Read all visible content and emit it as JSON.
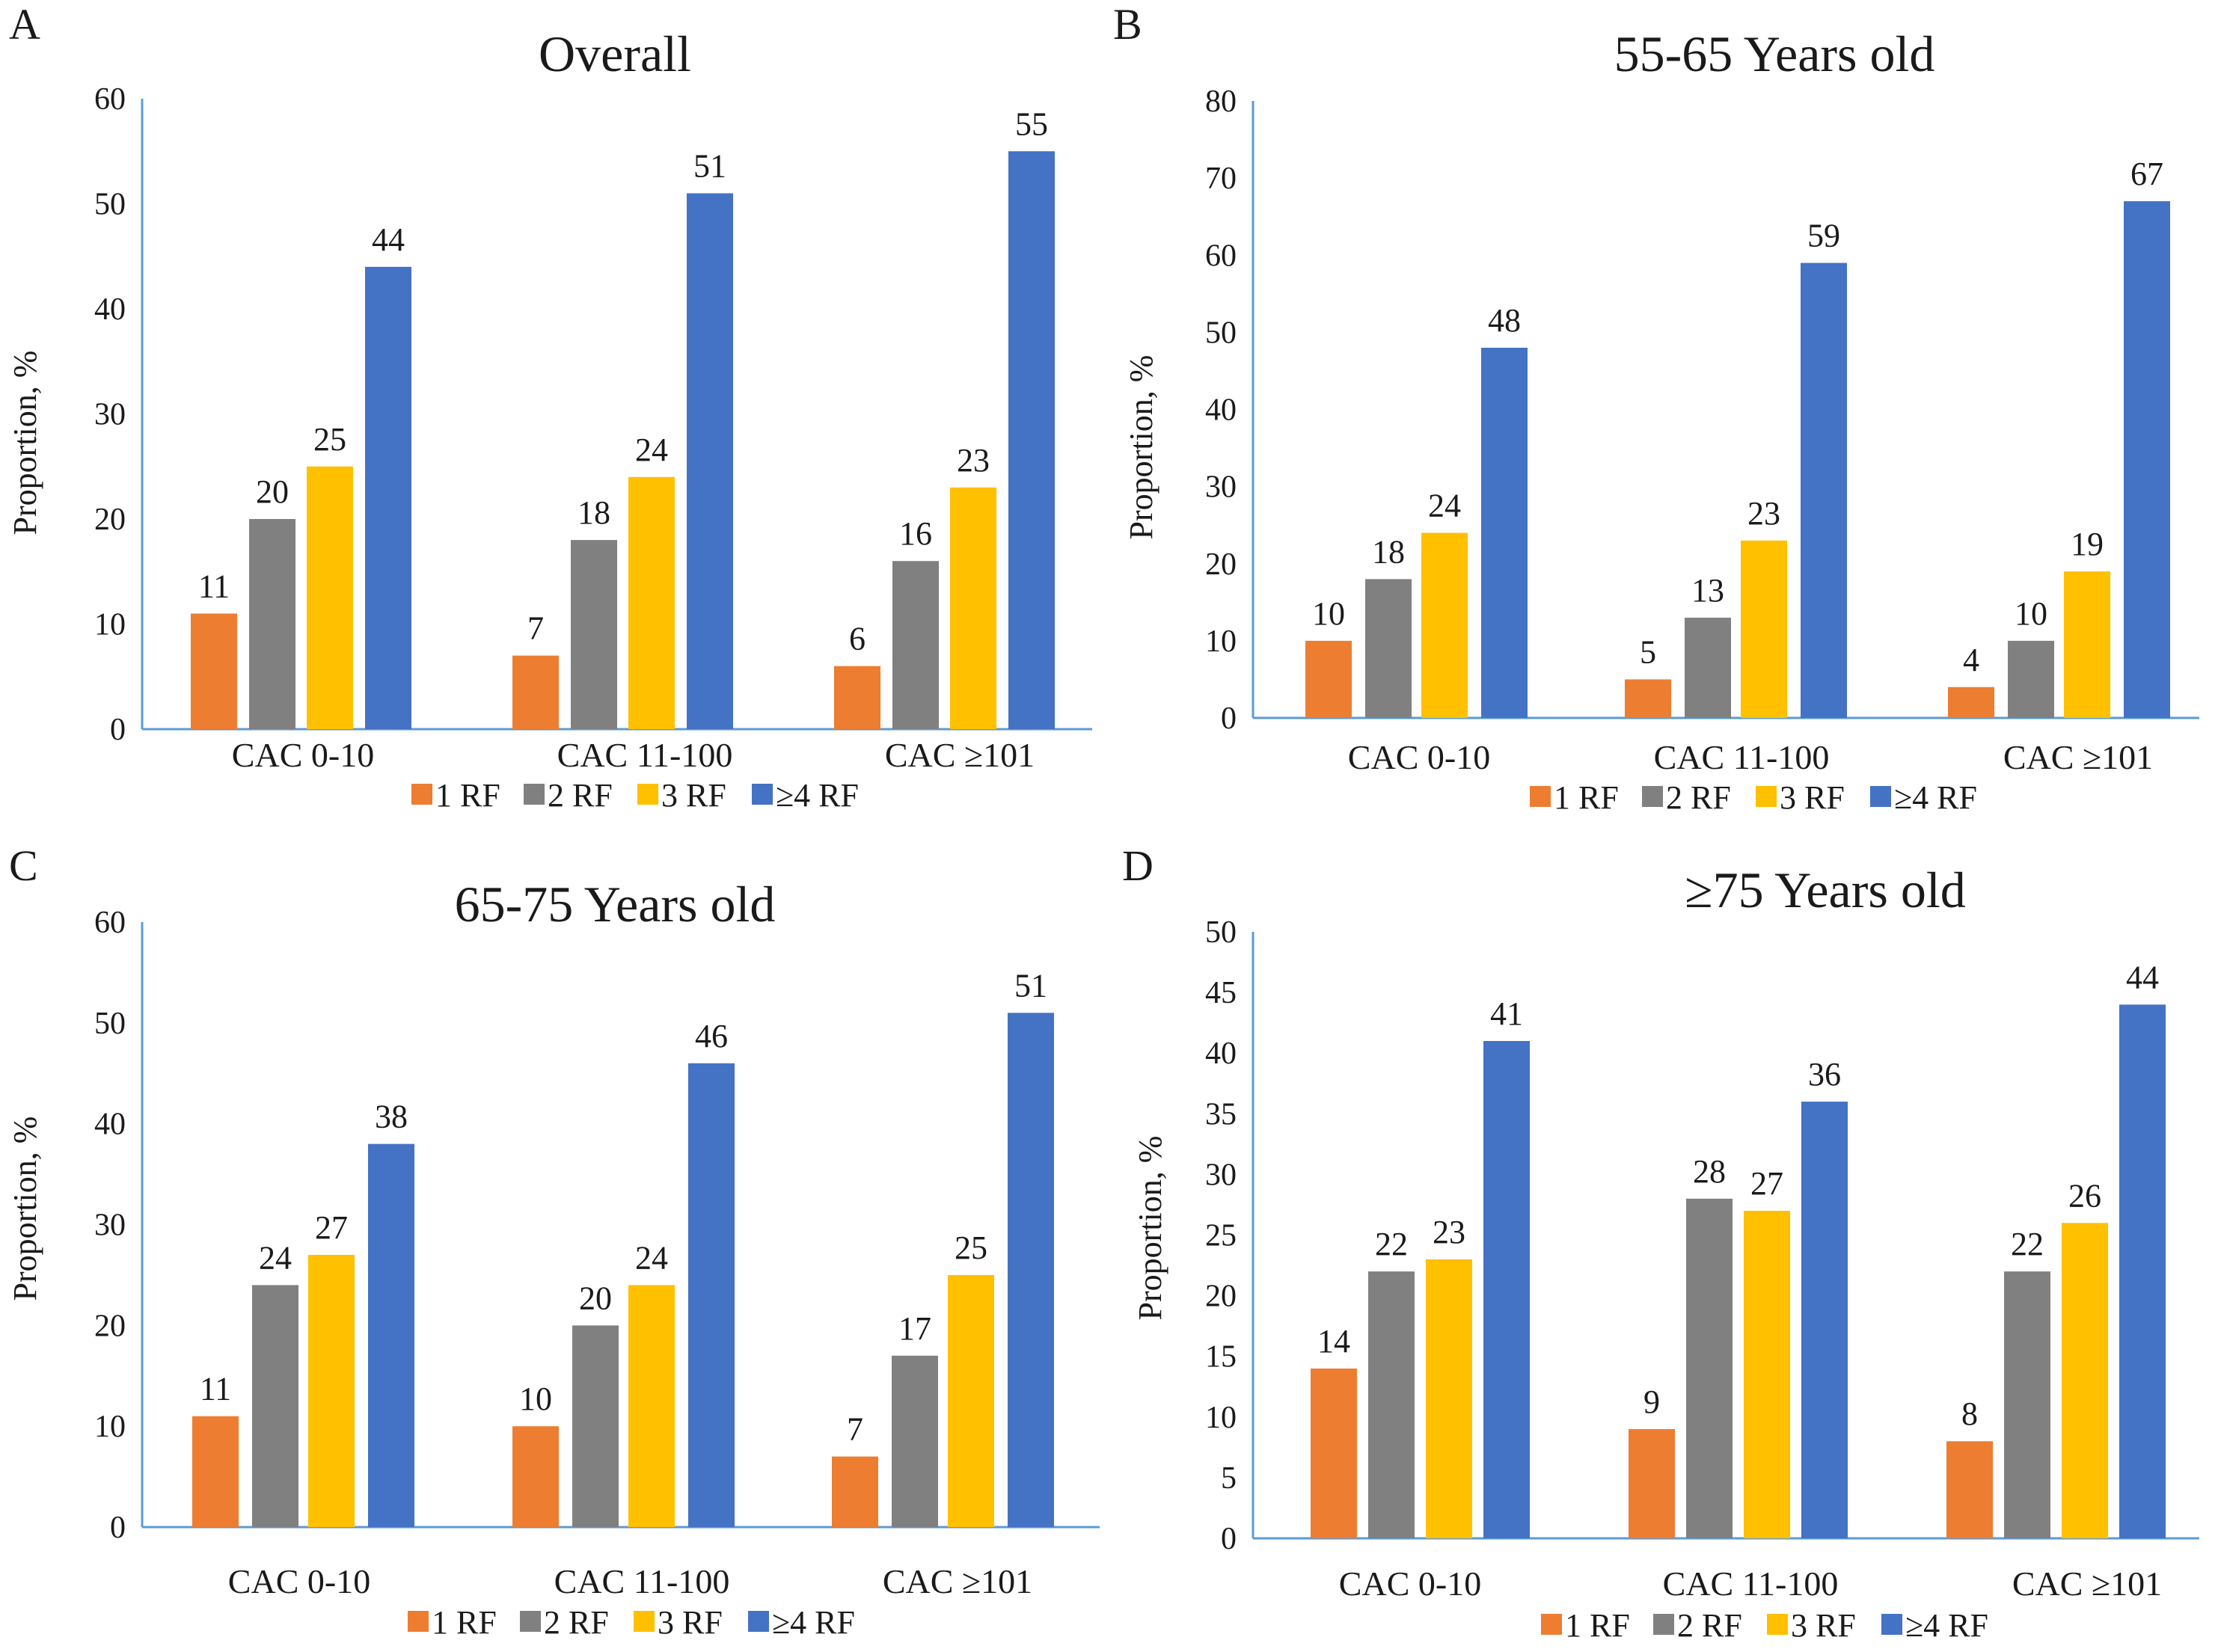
{
  "legend": {
    "items": [
      {
        "label": "1 RF",
        "color": "#ED7D31"
      },
      {
        "label": "2 RF",
        "color": "#808080"
      },
      {
        "label": "3 RF",
        "color": "#FFC000"
      },
      {
        "label": "≥4 RF",
        "color": "#4472C4"
      }
    ]
  },
  "axis_color": "#5B9BD5",
  "chart_data": [
    {
      "panel": "A",
      "type": "bar",
      "title": "Overall",
      "ylabel": "Proportion, %",
      "ylim": [
        0,
        60
      ],
      "yticks": [
        0,
        10,
        20,
        30,
        40,
        50,
        60
      ],
      "categories": [
        "CAC 0-10",
        "CAC 11-100",
        "CAC ≥101"
      ],
      "series": [
        {
          "name": "1 RF",
          "values": [
            11,
            7,
            6
          ]
        },
        {
          "name": "2 RF",
          "values": [
            20,
            18,
            16
          ]
        },
        {
          "name": "3 RF",
          "values": [
            25,
            24,
            23
          ]
        },
        {
          "name": "≥4 RF",
          "values": [
            44,
            51,
            55
          ]
        }
      ]
    },
    {
      "panel": "B",
      "type": "bar",
      "title": "55-65 Years old",
      "ylabel": "Proportion, %",
      "ylim": [
        0,
        80
      ],
      "yticks": [
        0,
        10,
        20,
        30,
        40,
        50,
        60,
        70,
        80
      ],
      "categories": [
        "CAC 0-10",
        "CAC 11-100",
        "CAC ≥101"
      ],
      "series": [
        {
          "name": "1 RF",
          "values": [
            10,
            5,
            4
          ]
        },
        {
          "name": "2 RF",
          "values": [
            18,
            13,
            10
          ]
        },
        {
          "name": "3 RF",
          "values": [
            24,
            23,
            19
          ]
        },
        {
          "name": "≥4 RF",
          "values": [
            48,
            59,
            67
          ]
        }
      ]
    },
    {
      "panel": "C",
      "type": "bar",
      "title": "65-75 Years old",
      "ylabel": "Proportion, %",
      "ylim": [
        0,
        60
      ],
      "yticks": [
        0,
        10,
        20,
        30,
        40,
        50,
        60
      ],
      "categories": [
        "CAC 0-10",
        "CAC 11-100",
        "CAC ≥101"
      ],
      "series": [
        {
          "name": "1 RF",
          "values": [
            11,
            10,
            7
          ]
        },
        {
          "name": "2 RF",
          "values": [
            24,
            20,
            17
          ]
        },
        {
          "name": "3 RF",
          "values": [
            27,
            24,
            25
          ]
        },
        {
          "name": "≥4 RF",
          "values": [
            38,
            46,
            51
          ]
        }
      ]
    },
    {
      "panel": "D",
      "type": "bar",
      "title": "≥75 Years old",
      "ylabel": "Proportion, %",
      "ylim": [
        0,
        50
      ],
      "yticks": [
        0,
        5,
        10,
        15,
        20,
        25,
        30,
        35,
        40,
        45,
        50
      ],
      "categories": [
        "CAC 0-10",
        "CAC 11-100",
        "CAC ≥101"
      ],
      "series": [
        {
          "name": "1 RF",
          "values": [
            14,
            9,
            8
          ]
        },
        {
          "name": "2 RF",
          "values": [
            22,
            28,
            22
          ]
        },
        {
          "name": "3 RF",
          "values": [
            23,
            27,
            26
          ]
        },
        {
          "name": "≥4 RF",
          "values": [
            41,
            36,
            44
          ]
        }
      ]
    }
  ]
}
